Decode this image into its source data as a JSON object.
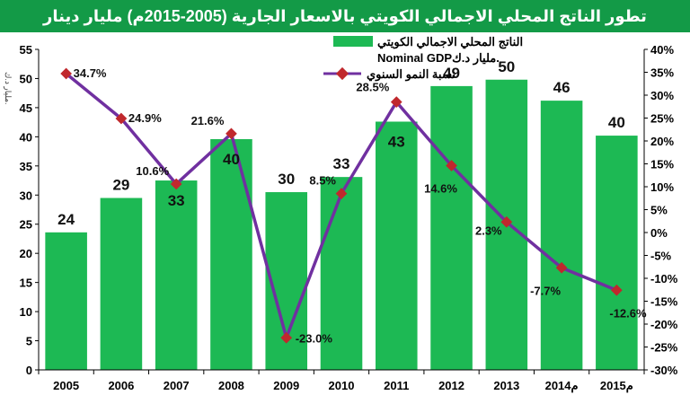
{
  "chart_data": {
    "type": "bar",
    "title": "تطور الناتج المحلي الاجمالي الكويتي بالاسعار الجارية (2005-2015م) مليار دينار",
    "unit_label": "مليار د.ك.",
    "categories": [
      "2005",
      "2006",
      "2007",
      "2008",
      "2009",
      "2010",
      "2011",
      "2012",
      "2013",
      "2014م",
      "2015م"
    ],
    "series": [
      {
        "name": "الناتج المحلي الاجمالي الكويتي Nominal GDP مليار د.ك.",
        "legend_line1": "الناتج المحلي الاجمالي الكويتي",
        "legend_line2": "Nominal GDPمليار د.ك.",
        "type": "bar",
        "axis": "left",
        "values": [
          23.6,
          29.5,
          32.5,
          39.6,
          30.5,
          33.1,
          42.6,
          48.7,
          49.8,
          46.2,
          40.2
        ],
        "labels": [
          "24",
          "29",
          "33",
          "40",
          "30",
          "33",
          "43",
          "49",
          "50",
          "46",
          "40"
        ],
        "color": "#1db954"
      },
      {
        "name": "نسبة النمو السنوي",
        "type": "line",
        "axis": "right",
        "values": [
          34.7,
          24.9,
          10.6,
          21.6,
          -23.0,
          8.5,
          28.5,
          14.6,
          2.3,
          -7.7,
          -12.6
        ],
        "labels": [
          "34.7%",
          "24.9%",
          "10.6%",
          "21.6%",
          "-23.0%",
          "8.5%",
          "28.5%",
          "14.6%",
          "2.3%",
          "-7.7%",
          "-12.6%"
        ],
        "line_color": "#7030a0",
        "marker_color": "#c0282d"
      }
    ],
    "y_left": {
      "range": [
        0,
        55
      ],
      "ticks": [
        "0",
        "5",
        "10",
        "15",
        "20",
        "25",
        "30",
        "35",
        "40",
        "45",
        "50",
        "55"
      ]
    },
    "y_right": {
      "range": [
        -30,
        40
      ],
      "ticks": [
        "-30%",
        "-25%",
        "-20%",
        "-15%",
        "-10%",
        "-5%",
        "0%",
        "5%",
        "10%",
        "15%",
        "20%",
        "25%",
        "30%",
        "35%",
        "40%"
      ]
    },
    "grid": false,
    "legend_position": "top-center"
  }
}
